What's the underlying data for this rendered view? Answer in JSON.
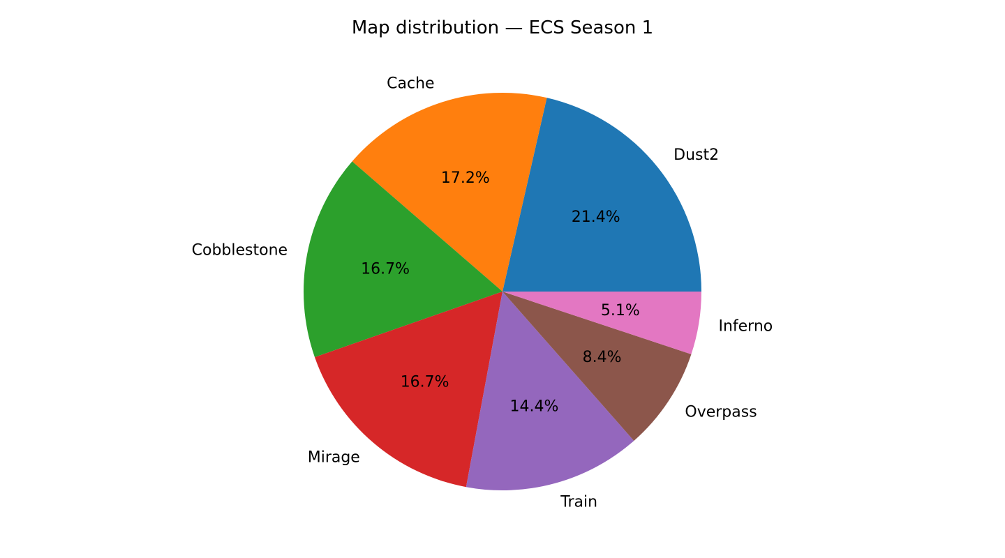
{
  "chart_data": {
    "type": "pie",
    "title": "Map distribution — ECS Season 1",
    "start_angle_deg": 0,
    "direction": "counterclockwise",
    "slices": [
      {
        "label": "Dust2",
        "value": 21.4,
        "pct_label": "21.4%",
        "color": "#1f77b4"
      },
      {
        "label": "Cache",
        "value": 17.2,
        "pct_label": "17.2%",
        "color": "#ff7f0e"
      },
      {
        "label": "Cobblestone",
        "value": 16.7,
        "pct_label": "16.7%",
        "color": "#2ca02c"
      },
      {
        "label": "Mirage",
        "value": 16.7,
        "pct_label": "16.7%",
        "color": "#d62728"
      },
      {
        "label": "Train",
        "value": 14.4,
        "pct_label": "14.4%",
        "color": "#9467bd"
      },
      {
        "label": "Overpass",
        "value": 8.4,
        "pct_label": "8.4%",
        "color": "#8c564b"
      },
      {
        "label": "Inferno",
        "value": 5.1,
        "pct_label": "5.1%",
        "color": "#e377c2"
      }
    ]
  }
}
